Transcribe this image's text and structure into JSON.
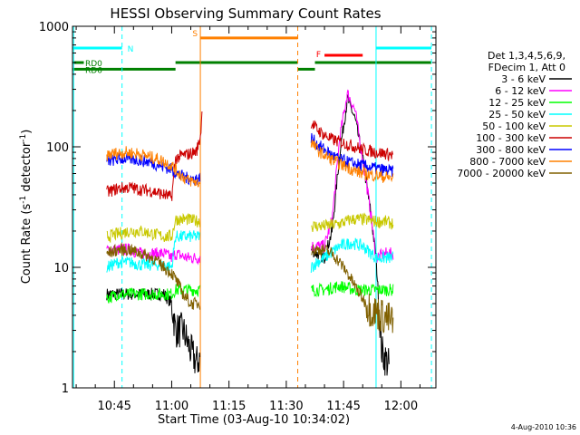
{
  "chart_data": {
    "type": "line",
    "title": "HESSI Observing Summary Count Rates",
    "xlabel": "Start Time (03-Aug-10 10:34:02)",
    "ylabel": "Count Rate (s⁻¹ detector⁻¹)",
    "ylabel_main": "Count Rate (s",
    "ylabel_sup1": "-1",
    "ylabel_mid": " detector",
    "ylabel_sup2": "-1",
    "ylabel_end": ")",
    "y_scale": "log",
    "ylim": [
      1,
      1000
    ],
    "xlim": [
      "10:34:02",
      "12:09:10"
    ],
    "x_ticks": [
      "10:45",
      "11:00",
      "11:15",
      "11:30",
      "11:45",
      "12:00"
    ],
    "y_ticks": [
      "1",
      "10",
      "100",
      "1000"
    ],
    "timestamp": "4-Aug-2010 10:36",
    "legend": {
      "placement": "right",
      "header": [
        "Det 1,3,4,5,6,9,",
        "FDecim 1, Att 0"
      ],
      "entries": [
        {
          "label": "3 - 6 keV",
          "color": "#000000"
        },
        {
          "label": "6 - 12 keV",
          "color": "#ff00ff"
        },
        {
          "label": "12 - 25 keV",
          "color": "#00ff00"
        },
        {
          "label": "25 - 50 keV",
          "color": "#00ffff"
        },
        {
          "label": "50 - 100 keV",
          "color": "#c8c800"
        },
        {
          "label": "100 - 300 keV",
          "color": "#cc0000"
        },
        {
          "label": "300 - 800 keV",
          "color": "#0000ff"
        },
        {
          "label": "800 - 7000 keV",
          "color": "#ff8000"
        },
        {
          "label": "7000 - 20000 keV",
          "color": "#806000"
        }
      ]
    },
    "flags": [
      {
        "name": "N",
        "color": "#00ffff",
        "y_value": 660,
        "segments": [
          [
            "10:34:02",
            "10:47:00"
          ],
          [
            "11:53:30",
            "12:08:00"
          ]
        ]
      },
      {
        "name": "S",
        "color": "#ff8000",
        "y_value": 800,
        "segments": [
          [
            "11:07:30",
            "11:33:00"
          ]
        ]
      },
      {
        "name": "F",
        "color": "#ff0000",
        "y_value": 575,
        "segments": [
          [
            "11:40:00",
            "11:50:00"
          ]
        ]
      },
      {
        "name": "RD0",
        "color": "#008000",
        "y_value": 500,
        "segments": [
          [
            "10:34:02",
            "10:37:00"
          ],
          [
            "11:01:00",
            "11:33:00"
          ],
          [
            "11:37:30",
            "12:08:00"
          ]
        ]
      },
      {
        "name": "RD6",
        "color": "#008000",
        "y_value": 440,
        "segments": [
          [
            "10:34:02",
            "11:01:00"
          ],
          [
            "11:33:00",
            "11:37:30"
          ]
        ]
      }
    ],
    "vertical_markers": [
      {
        "time": "10:34:20",
        "color": "#00ffff",
        "style": "solid"
      },
      {
        "time": "10:47:00",
        "color": "#00ffff",
        "style": "dashed"
      },
      {
        "time": "11:07:30",
        "color": "#ff8000",
        "style": "solid"
      },
      {
        "time": "11:33:00",
        "color": "#ff8000",
        "style": "dashed"
      },
      {
        "time": "11:53:30",
        "color": "#00ffff",
        "style": "solid"
      },
      {
        "time": "12:08:00",
        "color": "#00ffff",
        "style": "dashed"
      }
    ],
    "series": [
      {
        "name": "3 - 6 keV",
        "color": "#000000",
        "segments": [
          {
            "x": [
              "10:43:00",
              "10:46:00",
              "10:49:00",
              "10:52:00",
              "10:55:00",
              "10:58:00",
              "11:00:00",
              "11:01:00",
              "11:03:00",
              "11:05:00",
              "11:06:30",
              "11:07:30"
            ],
            "y": [
              6,
              6,
              6,
              6,
              6,
              6,
              5,
              3,
              3,
              2,
              1.6,
              1.8
            ]
          },
          {
            "x": [
              "11:36:30",
              "11:38:00",
              "11:40:00",
              "11:42:00",
              "11:44:00",
              "11:46:00",
              "11:48:00",
              "11:50:00",
              "11:52:00",
              "11:53:30",
              "11:55:00",
              "11:57:00"
            ],
            "y": [
              14,
              13,
              12,
              20,
              90,
              250,
              170,
              80,
              30,
              12,
              2,
              1.5
            ]
          }
        ]
      },
      {
        "name": "6 - 12 keV",
        "color": "#ff00ff",
        "segments": [
          {
            "x": [
              "10:43:00",
              "10:46:00",
              "10:49:00",
              "10:52:00",
              "10:55:00",
              "10:58:00",
              "11:00:00",
              "11:01:00",
              "11:04:00",
              "11:07:30"
            ],
            "y": [
              14,
              14,
              14,
              13,
              13,
              13,
              12,
              13,
              12,
              12
            ]
          },
          {
            "x": [
              "11:36:30",
              "11:38:00",
              "11:40:00",
              "11:42:00",
              "11:44:00",
              "11:46:00",
              "11:48:00",
              "11:50:00",
              "11:52:00",
              "11:53:30",
              "11:56:00",
              "11:58:00"
            ],
            "y": [
              15,
              15,
              15,
              25,
              120,
              280,
              200,
              80,
              30,
              12,
              13,
              13
            ]
          }
        ]
      },
      {
        "name": "12 - 25 keV",
        "color": "#00ff00",
        "segments": [
          {
            "x": [
              "10:43:00",
              "10:46:00",
              "10:49:00",
              "10:52:00",
              "10:55:00",
              "10:58:00",
              "11:00:00",
              "11:01:00",
              "11:04:00",
              "11:07:30"
            ],
            "y": [
              5.5,
              6,
              6,
              6,
              6,
              6,
              6,
              6.5,
              6.5,
              6.5
            ]
          },
          {
            "x": [
              "11:36:30",
              "11:40:00",
              "11:44:00",
              "11:48:00",
              "11:52:00",
              "11:56:00",
              "11:58:00"
            ],
            "y": [
              6.5,
              6.5,
              7,
              6.5,
              6.5,
              6.5,
              6.5
            ]
          }
        ]
      },
      {
        "name": "25 - 50 keV",
        "color": "#00ffff",
        "segments": [
          {
            "x": [
              "10:43:00",
              "10:46:00",
              "10:49:00",
              "10:52:00",
              "10:55:00",
              "10:58:00",
              "11:00:00",
              "11:01:00",
              "11:04:00",
              "11:07:30"
            ],
            "y": [
              10,
              11,
              11,
              10.5,
              10.5,
              10.5,
              10,
              18,
              18,
              18
            ]
          },
          {
            "x": [
              "11:36:30",
              "11:38:00",
              "11:40:00",
              "11:44:00",
              "11:47:00",
              "11:50:00",
              "11:53:30",
              "11:56:00",
              "11:58:00"
            ],
            "y": [
              10,
              11,
              12,
              15,
              16,
              15,
              12,
              12,
              12
            ]
          }
        ]
      },
      {
        "name": "50 - 100 keV",
        "color": "#c8c800",
        "segments": [
          {
            "x": [
              "10:43:00",
              "10:46:00",
              "10:49:00",
              "10:52:00",
              "10:55:00",
              "10:58:00",
              "11:00:00",
              "11:01:00",
              "11:04:00",
              "11:07:30"
            ],
            "y": [
              18,
              19,
              20,
              20,
              19,
              18,
              18,
              25,
              25,
              24
            ]
          },
          {
            "x": [
              "11:36:30",
              "11:40:00",
              "11:44:00",
              "11:47:00",
              "11:50:00",
              "11:53:30",
              "11:56:00",
              "11:58:00"
            ],
            "y": [
              22,
              22,
              23,
              25,
              25,
              24,
              24,
              23
            ]
          }
        ]
      },
      {
        "name": "100 - 300 keV",
        "color": "#cc0000",
        "segments": [
          {
            "x": [
              "10:43:00",
              "10:46:00",
              "10:49:00",
              "10:52:00",
              "10:55:00",
              "10:58:00",
              "11:00:00",
              "11:01:00",
              "11:03:00",
              "11:05:00",
              "11:06:30",
              "11:07:30",
              "11:08:00"
            ],
            "y": [
              42,
              45,
              46,
              44,
              43,
              40,
              38,
              80,
              85,
              88,
              92,
              120,
              200
            ]
          },
          {
            "x": [
              "11:36:30",
              "11:38:00",
              "11:40:00",
              "11:42:00",
              "11:44:00",
              "11:46:00",
              "11:48:00",
              "11:50:00",
              "11:53:30",
              "11:56:00",
              "11:58:00"
            ],
            "y": [
              160,
              140,
              125,
              115,
              110,
              105,
              100,
              95,
              90,
              88,
              85
            ]
          }
        ]
      },
      {
        "name": "300 - 800 keV",
        "color": "#0000ff",
        "segments": [
          {
            "x": [
              "10:43:00",
              "10:45:00",
              "10:48:00",
              "10:51:00",
              "10:54:00",
              "10:57:00",
              "11:00:00",
              "11:02:00",
              "11:04:00",
              "11:07:30"
            ],
            "y": [
              75,
              78,
              80,
              78,
              75,
              70,
              65,
              58,
              55,
              54
            ]
          },
          {
            "x": [
              "11:36:30",
              "11:38:00",
              "11:40:00",
              "11:42:00",
              "11:44:00",
              "11:46:00",
              "11:48:00",
              "11:50:00",
              "11:53:30",
              "11:56:00",
              "11:58:00"
            ],
            "y": [
              120,
              105,
              95,
              85,
              78,
              75,
              72,
              70,
              66,
              64,
              62
            ]
          }
        ]
      },
      {
        "name": "800 - 7000 keV",
        "color": "#ff8000",
        "segments": [
          {
            "x": [
              "10:43:00",
              "10:45:00",
              "10:48:00",
              "10:51:00",
              "10:54:00",
              "10:57:00",
              "11:00:00",
              "11:02:00",
              "11:04:00",
              "11:07:30"
            ],
            "y": [
              85,
              88,
              90,
              88,
              83,
              78,
              70,
              60,
              53,
              50
            ]
          },
          {
            "x": [
              "11:36:30",
              "11:38:00",
              "11:40:00",
              "11:42:00",
              "11:44:00",
              "11:46:00",
              "11:48:00",
              "11:50:00",
              "11:53:30",
              "11:56:00",
              "11:58:00"
            ],
            "y": [
              110,
              95,
              85,
              78,
              72,
              68,
              63,
              60,
              58,
              56,
              55
            ]
          }
        ]
      },
      {
        "name": "7000 - 20000 keV",
        "color": "#806000",
        "segments": [
          {
            "x": [
              "10:43:00",
              "10:46:00",
              "10:49:00",
              "10:52:00",
              "10:55:00",
              "10:58:00",
              "11:00:00",
              "11:01:00",
              "11:03:00",
              "11:05:00",
              "11:07:30"
            ],
            "y": [
              13,
              14,
              14,
              13,
              12,
              10,
              9,
              8,
              6,
              5,
              5
            ]
          },
          {
            "x": [
              "11:36:30",
              "11:38:00",
              "11:40:00",
              "11:42:00",
              "11:44:00",
              "11:46:00",
              "11:48:00",
              "11:50:00",
              "11:52:00",
              "11:55:00",
              "11:58:00"
            ],
            "y": [
              14,
              14,
              14,
              13,
              11,
              9,
              7,
              5.5,
              4.5,
              4,
              3.5
            ]
          }
        ]
      }
    ]
  }
}
